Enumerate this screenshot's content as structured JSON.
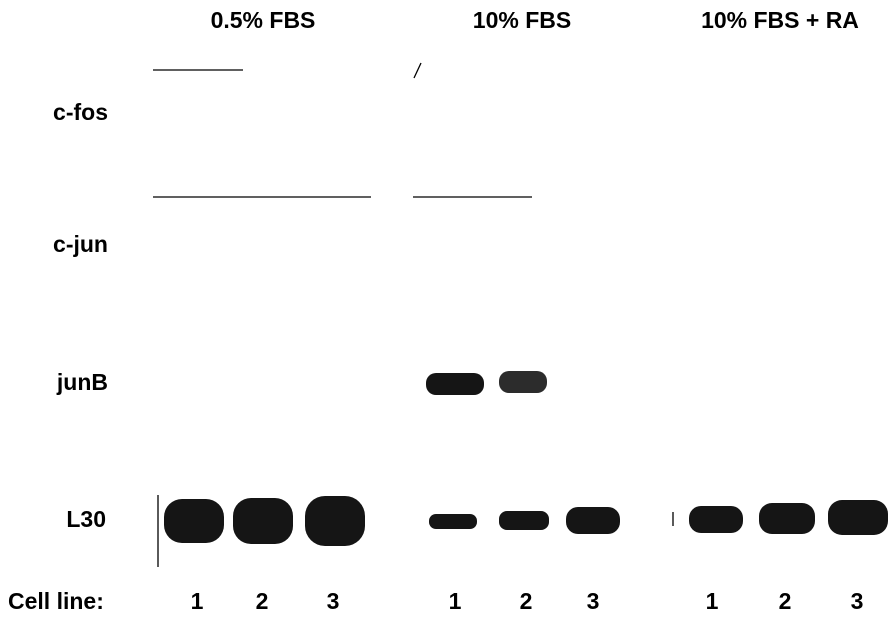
{
  "columns": [
    "0.5% FBS",
    "10% FBS",
    "10% FBS + RA"
  ],
  "rows": [
    "c-fos",
    "c-jun",
    "junB",
    "L30"
  ],
  "footer": {
    "label": "Cell line:",
    "lanes": [
      "1",
      "2",
      "3",
      "1",
      "2",
      "3",
      "1",
      "2",
      "3"
    ]
  }
}
